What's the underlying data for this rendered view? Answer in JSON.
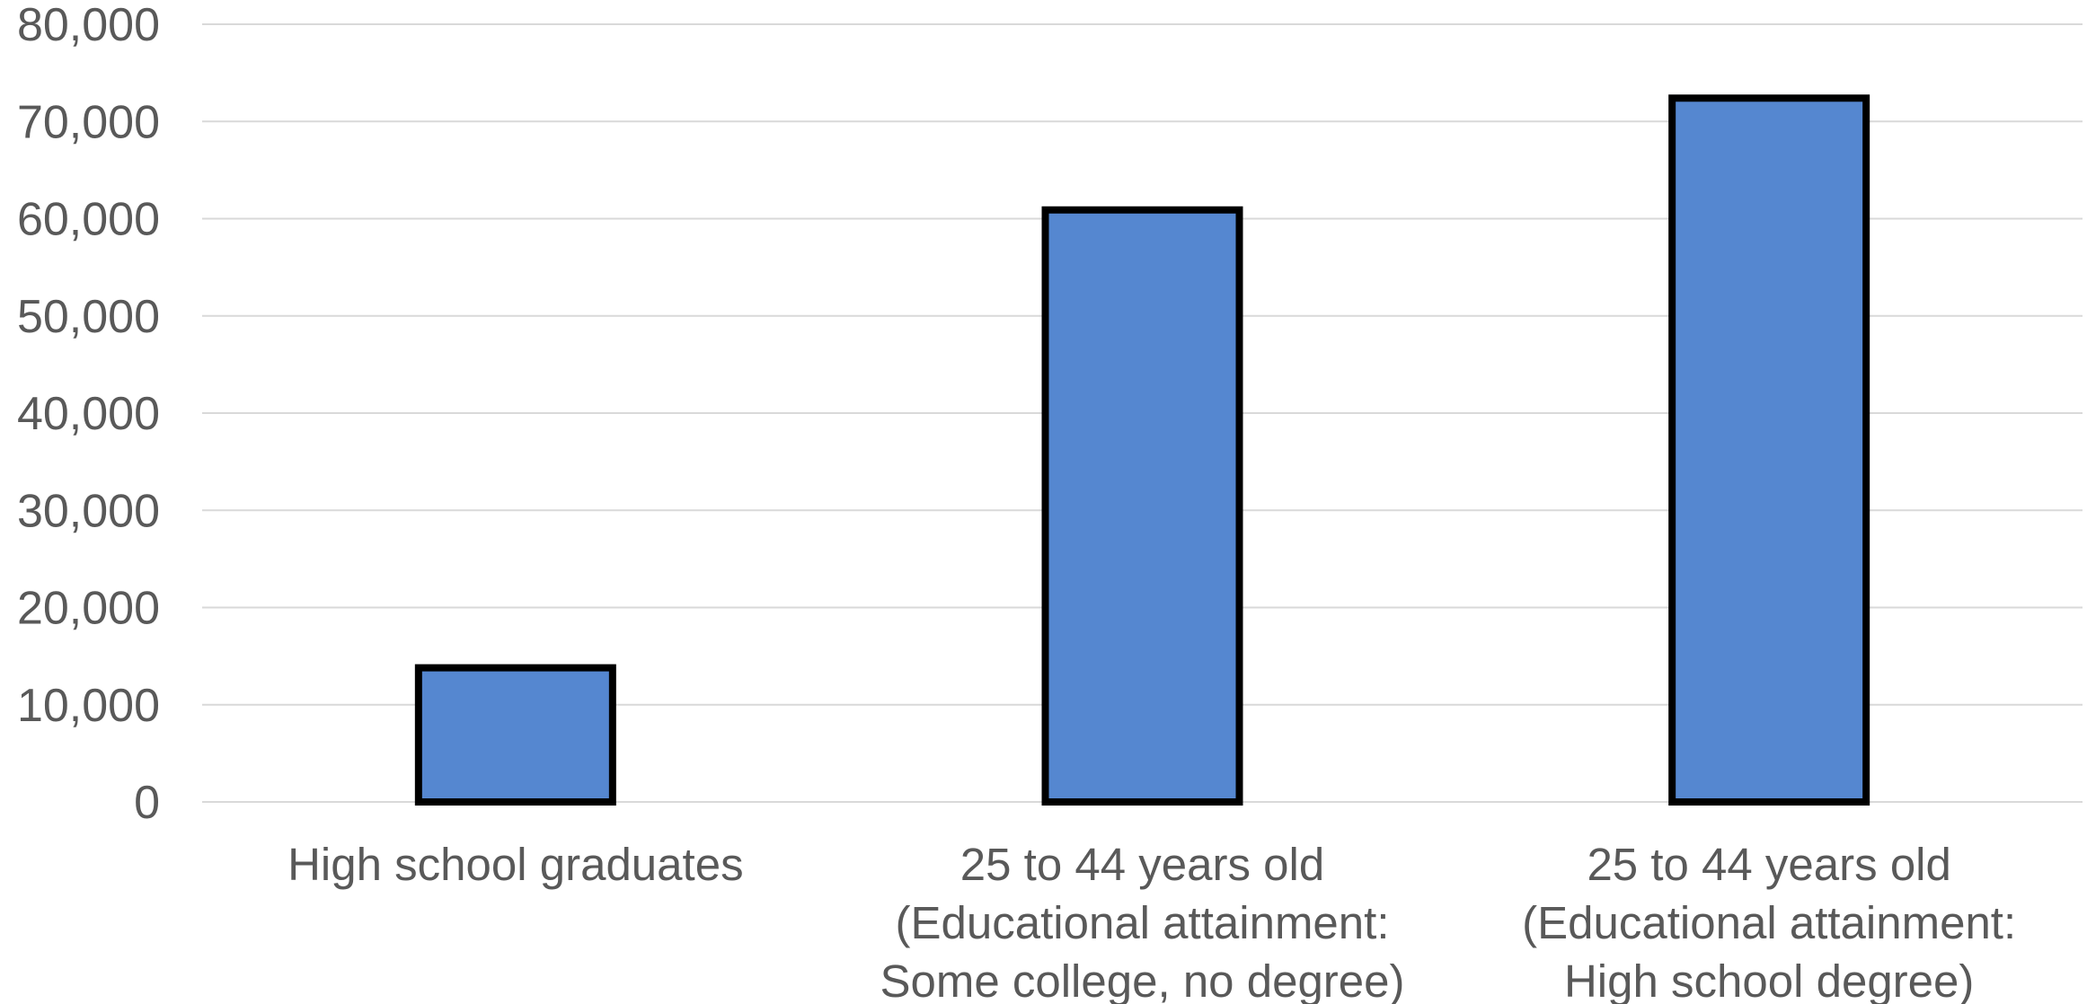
{
  "chart_data": {
    "type": "bar",
    "title": "",
    "xlabel": "",
    "ylabel": "",
    "ylim": [
      0,
      80000
    ],
    "yticks": [
      0,
      10000,
      20000,
      30000,
      40000,
      50000,
      60000,
      70000,
      80000
    ],
    "ytick_labels": [
      "0",
      "10,000",
      "20,000",
      "30,000",
      "40,000",
      "50,000",
      "60,000",
      "70,000",
      "80,000"
    ],
    "categories": [
      [
        "High school graduates"
      ],
      [
        "25 to 44 years old",
        "(Educational attainment:",
        "Some college, no degree)"
      ],
      [
        "25 to 44 years old",
        "(Educational attainment:",
        "High school degree)"
      ]
    ],
    "values": [
      13800,
      60900,
      72400
    ],
    "grid": true,
    "legend": "none",
    "colors": {
      "bar_fill": "#5587D0",
      "bar_stroke": "#000000",
      "grid": "#D9D9D9",
      "text": "#595959"
    }
  }
}
